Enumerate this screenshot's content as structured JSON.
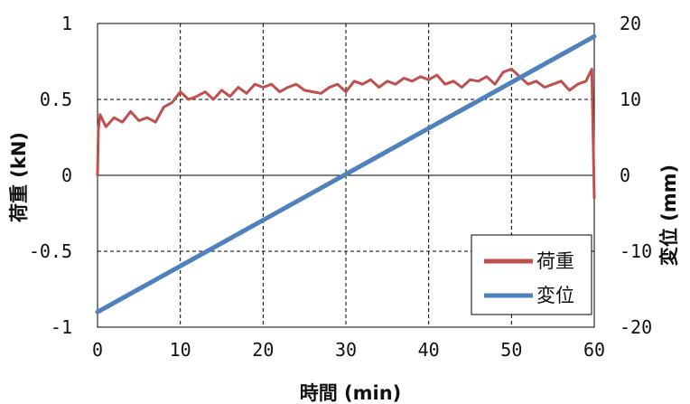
{
  "chart_data": {
    "type": "line",
    "title": "",
    "xlabel": "時間 (min)",
    "ylabel_left": "荷重 (kN)",
    "ylabel_right": "変位 (mm)",
    "xlim": [
      0,
      60
    ],
    "ylim_left": [
      -1,
      1
    ],
    "ylim_right": [
      -20,
      20
    ],
    "x_ticks": [
      "0",
      "10",
      "20",
      "30",
      "40",
      "50",
      "60"
    ],
    "y_left_ticks": [
      "1",
      "0.5",
      "0",
      "-0.5",
      "-1"
    ],
    "y_right_ticks": [
      "20",
      "10",
      "0",
      "-10",
      "-20"
    ],
    "grid": true,
    "legend_position": "bottom-right",
    "series": [
      {
        "name": "荷重",
        "axis": "left",
        "color": "#c0504d",
        "x": [
          0,
          0.1,
          0.3,
          1,
          2,
          3,
          4,
          5,
          6,
          7,
          8,
          9,
          10,
          11,
          12,
          13,
          14,
          15,
          16,
          17,
          18,
          19,
          20,
          21,
          22,
          23,
          24,
          25,
          26,
          27,
          28,
          29,
          30,
          31,
          32,
          33,
          34,
          35,
          36,
          37,
          38,
          39,
          40,
          41,
          42,
          43,
          44,
          45,
          46,
          47,
          48,
          49,
          50,
          51,
          52,
          53,
          54,
          55,
          56,
          57,
          58,
          59,
          59.7,
          60
        ],
        "y": [
          0.0,
          0.3,
          0.4,
          0.32,
          0.38,
          0.35,
          0.42,
          0.36,
          0.38,
          0.35,
          0.45,
          0.48,
          0.55,
          0.5,
          0.52,
          0.55,
          0.5,
          0.56,
          0.52,
          0.58,
          0.54,
          0.6,
          0.58,
          0.6,
          0.55,
          0.58,
          0.6,
          0.56,
          0.55,
          0.54,
          0.58,
          0.6,
          0.55,
          0.62,
          0.6,
          0.63,
          0.58,
          0.62,
          0.6,
          0.64,
          0.62,
          0.65,
          0.63,
          0.66,
          0.6,
          0.62,
          0.58,
          0.63,
          0.62,
          0.65,
          0.6,
          0.68,
          0.7,
          0.65,
          0.6,
          0.62,
          0.58,
          0.6,
          0.62,
          0.56,
          0.6,
          0.62,
          0.7,
          -0.15
        ]
      },
      {
        "name": "変位",
        "axis": "right",
        "color": "#4f81bd",
        "x": [
          0,
          60
        ],
        "y": [
          -18,
          18.3
        ]
      }
    ]
  }
}
